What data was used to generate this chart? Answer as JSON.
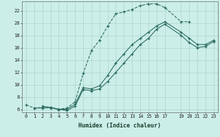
{
  "xlabel": "Humidex (Indice chaleur)",
  "bg_color": "#cceee8",
  "grid_color": "#aad4cc",
  "line_color": "#2a6b5e",
  "xlim": [
    -0.5,
    23.5
  ],
  "ylim": [
    5.5,
    23.5
  ],
  "xticks": [
    0,
    1,
    2,
    3,
    4,
    5,
    6,
    7,
    8,
    9,
    10,
    11,
    12,
    13,
    14,
    15,
    16,
    17,
    19,
    20,
    21,
    22,
    23
  ],
  "yticks": [
    6,
    8,
    10,
    12,
    14,
    16,
    18,
    20,
    22
  ],
  "line1_x": [
    0,
    1,
    2,
    3,
    4,
    5,
    6,
    7,
    8,
    9,
    10,
    11,
    12,
    13,
    14,
    15,
    16,
    17,
    19,
    20
  ],
  "line1_y": [
    6.7,
    6.2,
    6.3,
    6.2,
    6.0,
    6.2,
    7.2,
    11.8,
    15.5,
    17.2,
    19.5,
    21.5,
    21.8,
    22.2,
    22.8,
    23.1,
    23.1,
    22.5,
    20.2,
    20.2
  ],
  "line2_x": [
    1,
    2,
    3,
    4,
    5,
    6,
    7,
    8,
    9,
    10,
    11,
    12,
    13,
    14,
    15,
    16,
    17,
    19,
    20,
    21,
    22,
    23
  ],
  "line2_y": [
    6.2,
    6.2,
    6.3,
    6.0,
    6.0,
    6.8,
    9.5,
    9.3,
    9.8,
    11.5,
    13.5,
    15.0,
    16.5,
    17.5,
    18.5,
    19.5,
    20.2,
    18.5,
    17.5,
    16.5,
    16.5,
    17.2
  ],
  "line3_x": [
    2,
    3,
    4,
    5,
    6,
    7,
    8,
    9,
    10,
    11,
    12,
    13,
    14,
    15,
    16,
    17,
    19,
    20,
    21,
    22,
    23
  ],
  "line3_y": [
    6.5,
    6.3,
    6.0,
    5.8,
    6.5,
    9.2,
    9.0,
    9.3,
    10.5,
    12.0,
    13.5,
    15.0,
    16.5,
    17.5,
    19.0,
    19.8,
    18.0,
    16.8,
    16.0,
    16.2,
    17.0
  ]
}
